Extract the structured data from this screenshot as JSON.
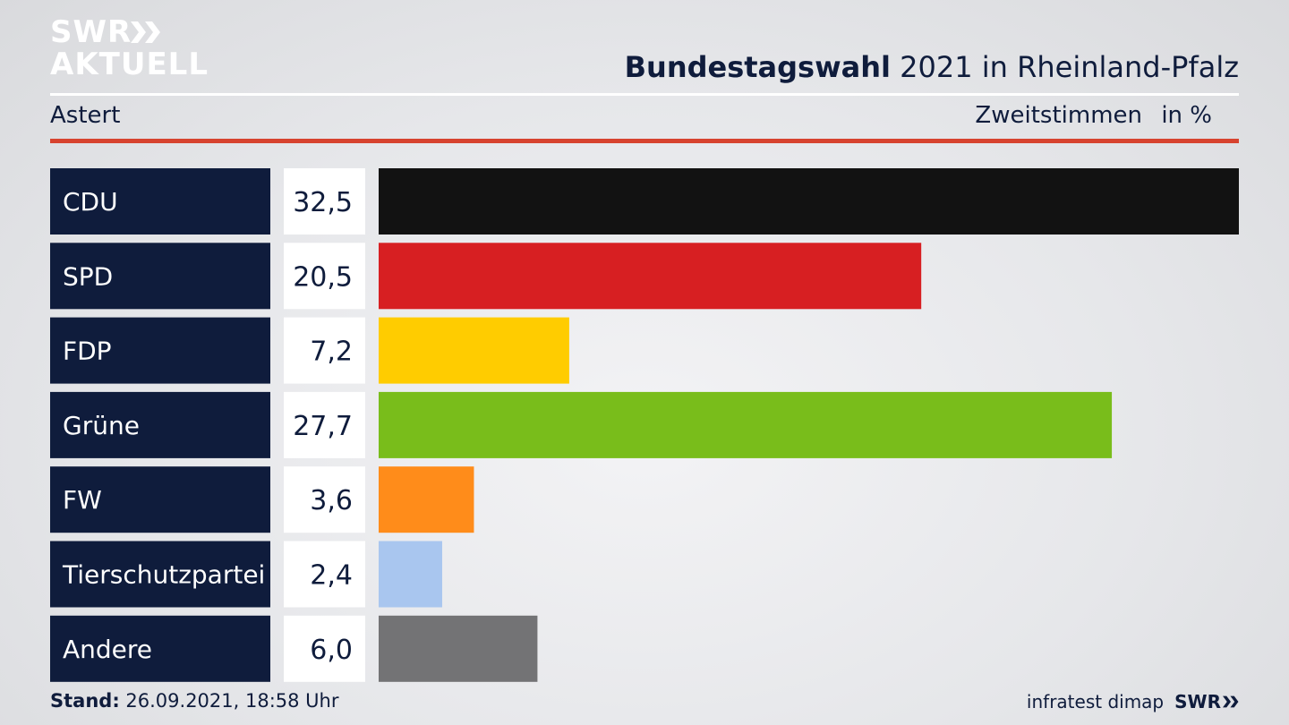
{
  "logo": {
    "line1": "SWR",
    "line2": "AKTUELL"
  },
  "header": {
    "title_bold": "Bundestagswahl",
    "title_rest": " 2021 in Rheinland-Pfalz",
    "region": "Astert",
    "metric": "Zweitstimmen",
    "unit": "in %"
  },
  "footer": {
    "stand_label": "Stand:",
    "stand_value": " 26.09.2021, 18:58 Uhr",
    "source": "infratest dimap",
    "brand": "SWR"
  },
  "chart_data": {
    "type": "bar",
    "orientation": "horizontal",
    "categories": [
      "CDU",
      "SPD",
      "FDP",
      "Grüne",
      "FW",
      "Tierschutzpartei",
      "Andere"
    ],
    "values": [
      32.5,
      20.5,
      7.2,
      27.7,
      3.6,
      2.4,
      6.0
    ],
    "value_labels": [
      "32,5",
      "20,5",
      "7,2",
      "27,7",
      "3,6",
      "2,4",
      "6,0"
    ],
    "colors": [
      "#121212",
      "#d71f22",
      "#ffcc00",
      "#79bd1b",
      "#ff8c1a",
      "#a9c6ef",
      "#737375"
    ],
    "title": "Bundestagswahl 2021 in Rheinland-Pfalz",
    "xlim": [
      0,
      32.5
    ]
  },
  "colors": {
    "navy": "#0f1c3c",
    "accent_red": "#d7432f"
  }
}
